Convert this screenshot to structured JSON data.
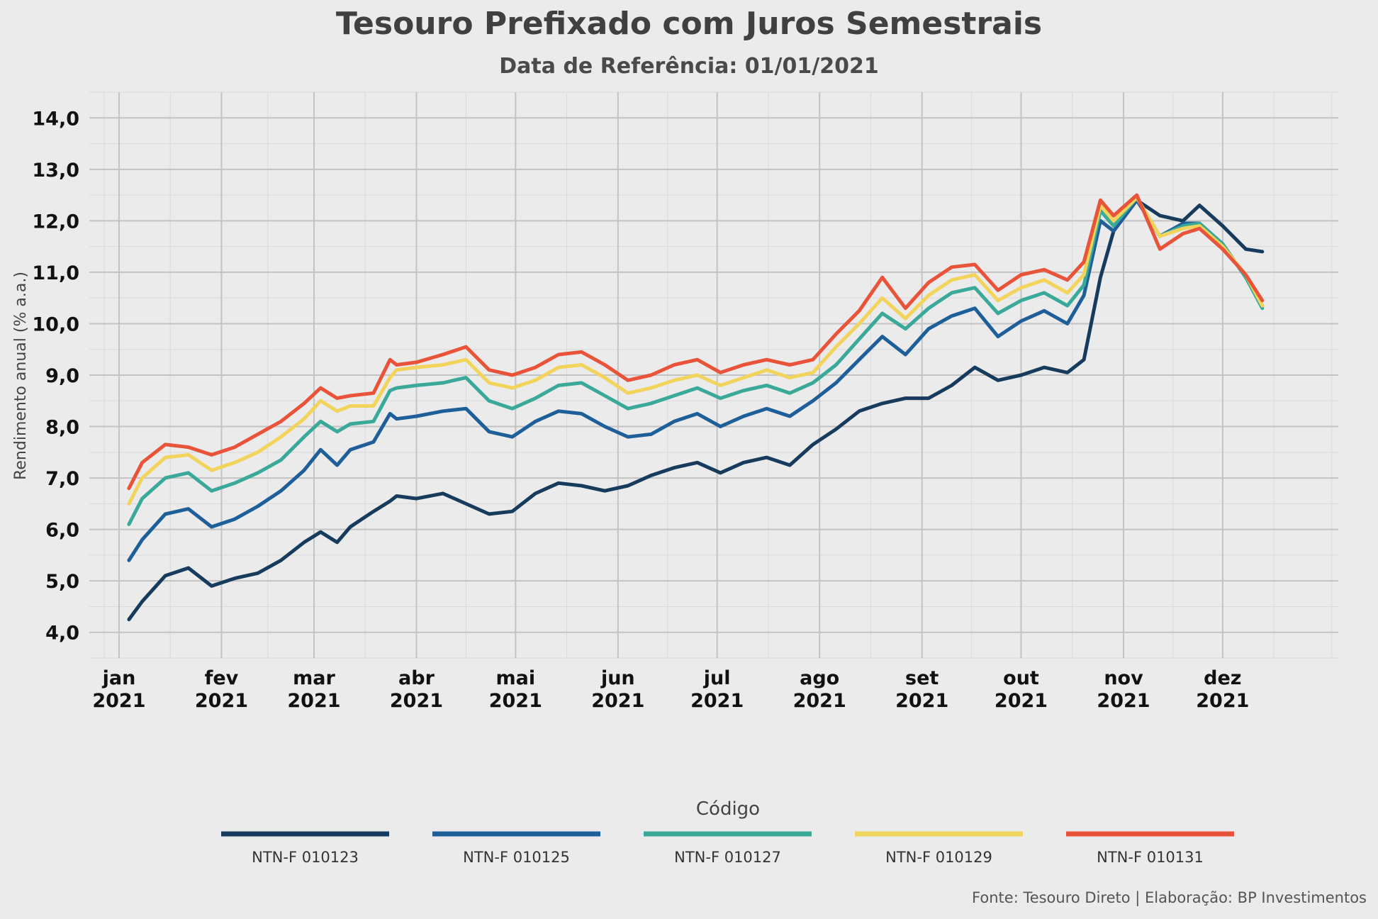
{
  "title": "Tesouro Prefixado com Juros Semestrais",
  "subtitle": "Data de Referência: 01/01/2021",
  "caption": "Fonte: Tesouro Direto | Elaboração: BP Investimentos",
  "chart_data": {
    "type": "line",
    "title": "Tesouro Prefixado com Juros Semestrais",
    "subtitle": "Data de Referência: 01/01/2021",
    "xlabel": "",
    "ylabel": "Rendimento anual (% a.a.)",
    "ylim": [
      3.5,
      14.5
    ],
    "xlim": [
      "2020-12-23",
      "2022-01-05"
    ],
    "grid": true,
    "legend_position": "bottom",
    "legend_title": "Código",
    "y_ticks": [
      "4,0",
      "5,0",
      "6,0",
      "7,0",
      "8,0",
      "9,0",
      "10,0",
      "11,0",
      "12,0",
      "13,0",
      "14,0"
    ],
    "x_ticks": [
      {
        "line1": "jan",
        "line2": "2021"
      },
      {
        "line1": "fev",
        "line2": "2021"
      },
      {
        "line1": "mar",
        "line2": "2021"
      },
      {
        "line1": "abr",
        "line2": "2021"
      },
      {
        "line1": "mai",
        "line2": "2021"
      },
      {
        "line1": "jun",
        "line2": "2021"
      },
      {
        "line1": "jul",
        "line2": "2021"
      },
      {
        "line1": "ago",
        "line2": "2021"
      },
      {
        "line1": "set",
        "line2": "2021"
      },
      {
        "line1": "out",
        "line2": "2021"
      },
      {
        "line1": "nov",
        "line2": "2021"
      },
      {
        "line1": "dez",
        "line2": "2021"
      }
    ],
    "x": [
      "2021-01-04",
      "2021-01-08",
      "2021-01-15",
      "2021-01-22",
      "2021-01-29",
      "2021-02-05",
      "2021-02-12",
      "2021-02-19",
      "2021-02-26",
      "2021-03-03",
      "2021-03-08",
      "2021-03-12",
      "2021-03-19",
      "2021-03-24",
      "2021-03-26",
      "2021-04-01",
      "2021-04-09",
      "2021-04-16",
      "2021-04-23",
      "2021-04-30",
      "2021-05-07",
      "2021-05-14",
      "2021-05-21",
      "2021-05-28",
      "2021-06-04",
      "2021-06-11",
      "2021-06-18",
      "2021-06-25",
      "2021-07-02",
      "2021-07-09",
      "2021-07-16",
      "2021-07-23",
      "2021-07-30",
      "2021-08-06",
      "2021-08-13",
      "2021-08-20",
      "2021-08-27",
      "2021-09-03",
      "2021-09-10",
      "2021-09-17",
      "2021-09-24",
      "2021-10-01",
      "2021-10-08",
      "2021-10-15",
      "2021-10-20",
      "2021-10-25",
      "2021-10-29",
      "2021-11-05",
      "2021-11-12",
      "2021-11-19",
      "2021-11-24",
      "2021-12-01",
      "2021-12-08",
      "2021-12-13"
    ],
    "series": [
      {
        "name": "NTN-F 010123",
        "color": "#163b5c",
        "values": [
          4.25,
          4.6,
          5.1,
          5.25,
          4.9,
          5.05,
          5.15,
          5.4,
          5.75,
          5.95,
          5.75,
          6.05,
          6.35,
          6.55,
          6.65,
          6.6,
          6.7,
          6.5,
          6.3,
          6.35,
          6.7,
          6.9,
          6.85,
          6.75,
          6.85,
          7.05,
          7.2,
          7.3,
          7.1,
          7.3,
          7.4,
          7.25,
          7.65,
          7.95,
          8.3,
          8.45,
          8.55,
          8.55,
          8.8,
          9.15,
          8.9,
          9.0,
          9.15,
          9.05,
          9.3,
          10.9,
          11.8,
          12.4,
          12.1,
          12.0,
          12.3,
          11.9,
          11.45,
          11.4
        ]
      },
      {
        "name": "NTN-F 010125",
        "color": "#1f5f99",
        "values": [
          5.4,
          5.8,
          6.3,
          6.4,
          6.05,
          6.2,
          6.45,
          6.75,
          7.15,
          7.55,
          7.25,
          7.55,
          7.7,
          8.25,
          8.15,
          8.2,
          8.3,
          8.35,
          7.9,
          7.8,
          8.1,
          8.3,
          8.25,
          8.0,
          7.8,
          7.85,
          8.1,
          8.25,
          8.0,
          8.2,
          8.35,
          8.2,
          8.5,
          8.85,
          9.3,
          9.75,
          9.4,
          9.9,
          10.15,
          10.3,
          9.75,
          10.05,
          10.25,
          10.0,
          10.55,
          12.0,
          11.8,
          12.4,
          11.7,
          11.95,
          11.95,
          11.55,
          10.9,
          10.35
        ]
      },
      {
        "name": "NTN-F 010127",
        "color": "#3aa99a",
        "values": [
          6.1,
          6.6,
          7.0,
          7.1,
          6.75,
          6.9,
          7.1,
          7.35,
          7.8,
          8.1,
          7.9,
          8.05,
          8.1,
          8.7,
          8.75,
          8.8,
          8.85,
          8.95,
          8.5,
          8.35,
          8.55,
          8.8,
          8.85,
          8.6,
          8.35,
          8.45,
          8.6,
          8.75,
          8.55,
          8.7,
          8.8,
          8.65,
          8.85,
          9.2,
          9.7,
          10.2,
          9.9,
          10.3,
          10.6,
          10.7,
          10.2,
          10.45,
          10.6,
          10.35,
          10.75,
          12.2,
          11.9,
          12.45,
          11.7,
          11.9,
          11.95,
          11.55,
          10.9,
          10.3
        ]
      },
      {
        "name": "NTN-F 010129",
        "color": "#f2d45c",
        "values": [
          6.5,
          7.0,
          7.4,
          7.45,
          7.15,
          7.3,
          7.5,
          7.8,
          8.15,
          8.5,
          8.3,
          8.4,
          8.4,
          8.95,
          9.1,
          9.15,
          9.2,
          9.3,
          8.85,
          8.75,
          8.9,
          9.15,
          9.2,
          8.95,
          8.65,
          8.75,
          8.9,
          9.0,
          8.8,
          8.95,
          9.1,
          8.95,
          9.05,
          9.55,
          10.0,
          10.5,
          10.1,
          10.55,
          10.85,
          10.95,
          10.45,
          10.7,
          10.85,
          10.6,
          10.95,
          12.3,
          12.0,
          12.45,
          11.7,
          11.85,
          11.9,
          11.5,
          10.95,
          10.35
        ]
      },
      {
        "name": "NTN-F 010131",
        "color": "#e8533a",
        "values": [
          6.8,
          7.3,
          7.65,
          7.6,
          7.45,
          7.6,
          7.85,
          8.1,
          8.45,
          8.75,
          8.55,
          8.6,
          8.65,
          9.3,
          9.2,
          9.25,
          9.4,
          9.55,
          9.1,
          9.0,
          9.15,
          9.4,
          9.45,
          9.2,
          8.9,
          9.0,
          9.2,
          9.3,
          9.05,
          9.2,
          9.3,
          9.2,
          9.3,
          9.8,
          10.25,
          10.9,
          10.3,
          10.8,
          11.1,
          11.15,
          10.65,
          10.95,
          11.05,
          10.85,
          11.2,
          12.4,
          12.1,
          12.5,
          11.45,
          11.75,
          11.85,
          11.45,
          10.95,
          10.45
        ]
      }
    ]
  }
}
